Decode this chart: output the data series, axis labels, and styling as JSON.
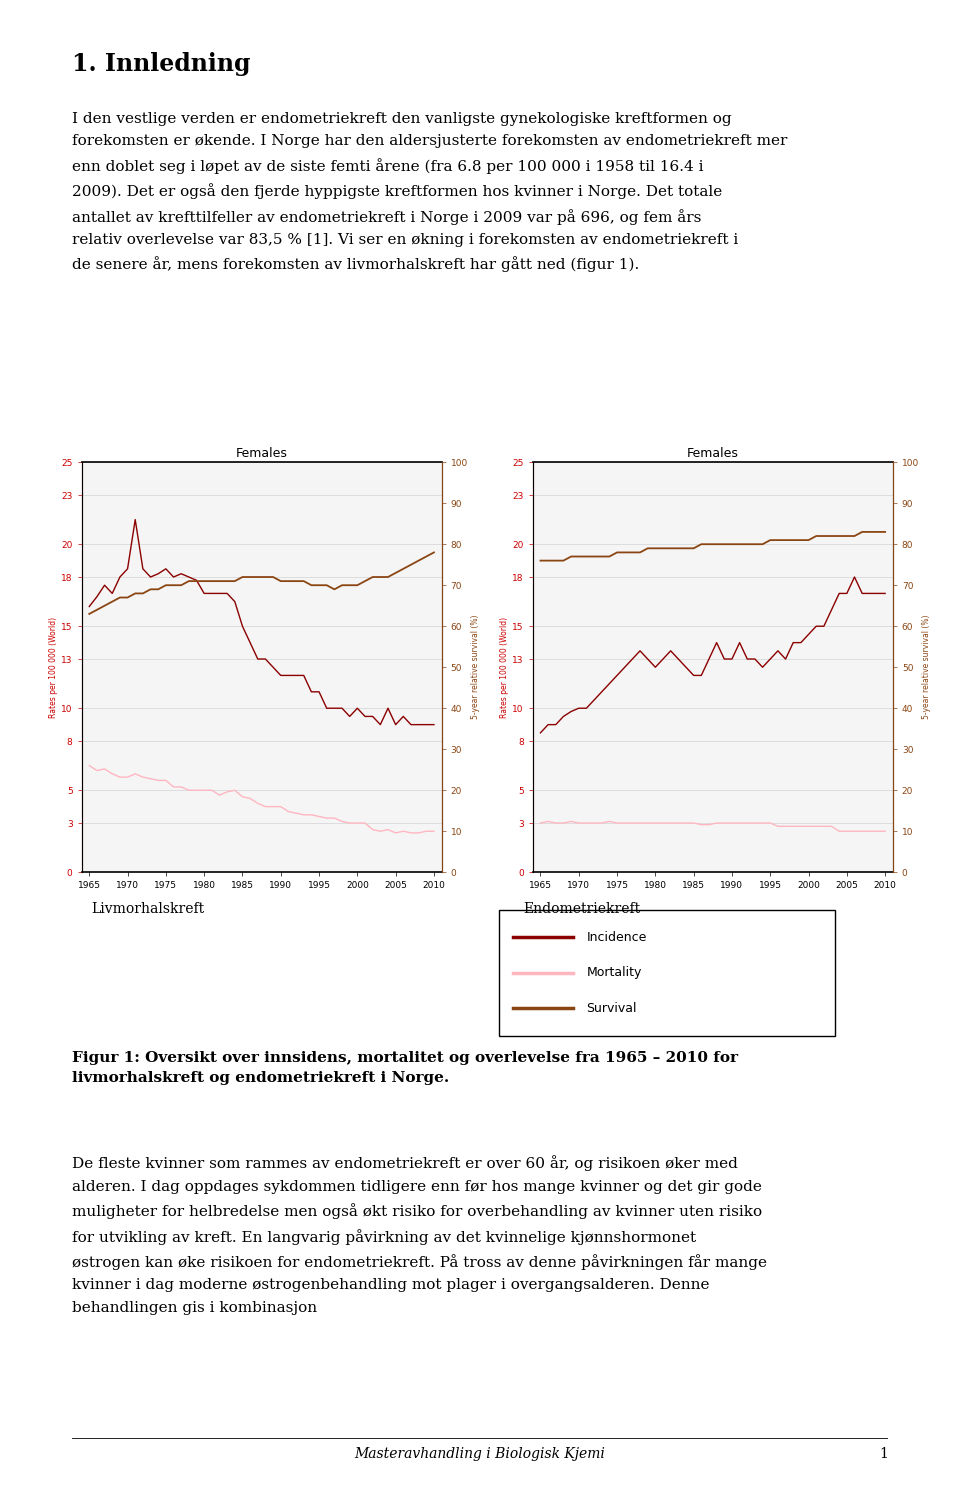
{
  "title": "1. Innledning",
  "paragraph1": "I den vestlige verden er endometriekreft den vanligste gynekologiske kreftformen og forekomsten er økende. I Norge har den aldersjusterte forekomsten av endometriekreft mer enn doblet seg i løpet av de siste femti årene (fra 6.8 per 100 000 i 1958 til 16.4 i 2009). Det er også den fjerde hyppigste kreftformen hos kvinner i Norge. Det totale antallet av krefttilfeller av endometriekreft i Norge i 2009 var på 696, og fem års relativ overlevelse var 83,5 % [1]. Vi ser en økning i forekomsten av endometriekreft i de senere år, mens forekomsten av livmorhalskreft har gått ned (figur 1).",
  "chart_label_left": "Livmorhalskreft",
  "chart_label_right": "Endometriekreft",
  "chart_title": "Females",
  "figur_caption_bold": "Figur 1: Oversikt over innsidens, mortalitet og overlevelse fra 1965 – 2010 for livmorhalskreft og endometriekreft i Norge.",
  "paragraph2": "De fleste kvinner som rammes av endometriekreft er over 60 år, og risikoen øker med alderen. I dag oppdages sykdommen tidligere enn før hos mange kvinner og det gir gode muligheter for helbredelse men også økt risiko for overbehandling av kvinner uten risiko for utvikling av kreft. En langvarig påvirkning av det kvinnelige kjønnshormonet østrogen kan øke risikoen for endometriekreft. På tross av denne påvirkningen får mange kvinner i dag moderne østrogenbehandling mot plager i overgangsalderen. Denne behandlingen gis i kombinasjon",
  "footer": "Masteravhandling i Biologisk Kjemi",
  "page_number": "1",
  "incidence_color": "#8B0000",
  "mortality_color": "#FFB6C1",
  "survival_color": "#8B4513",
  "background_color": "#ffffff",
  "years": [
    1965,
    1966,
    1967,
    1968,
    1969,
    1970,
    1971,
    1972,
    1973,
    1974,
    1975,
    1976,
    1977,
    1978,
    1979,
    1980,
    1981,
    1982,
    1983,
    1984,
    1985,
    1986,
    1987,
    1988,
    1989,
    1990,
    1991,
    1992,
    1993,
    1994,
    1995,
    1996,
    1997,
    1998,
    1999,
    2000,
    2001,
    2002,
    2003,
    2004,
    2005,
    2006,
    2007,
    2008,
    2009,
    2010
  ],
  "livmor_incidence": [
    16.2,
    16.8,
    17.5,
    17.0,
    18.0,
    18.5,
    21.5,
    18.5,
    18.0,
    18.2,
    18.5,
    18.0,
    18.2,
    18.0,
    17.8,
    17.0,
    17.0,
    17.0,
    17.0,
    16.5,
    15.0,
    14.0,
    13.0,
    13.0,
    12.5,
    12.0,
    12.0,
    12.0,
    12.0,
    11.0,
    11.0,
    10.0,
    10.0,
    10.0,
    9.5,
    10.0,
    9.5,
    9.5,
    9.0,
    10.0,
    9.0,
    9.5,
    9.0,
    9.0,
    9.0,
    9.0
  ],
  "livmor_mortality": [
    6.5,
    6.2,
    6.3,
    6.0,
    5.8,
    5.8,
    6.0,
    5.8,
    5.7,
    5.6,
    5.6,
    5.2,
    5.2,
    5.0,
    5.0,
    5.0,
    5.0,
    4.7,
    4.9,
    5.0,
    4.6,
    4.5,
    4.2,
    4.0,
    4.0,
    4.0,
    3.7,
    3.6,
    3.5,
    3.5,
    3.4,
    3.3,
    3.3,
    3.1,
    3.0,
    3.0,
    3.0,
    2.6,
    2.5,
    2.6,
    2.4,
    2.5,
    2.4,
    2.4,
    2.5,
    2.5
  ],
  "livmor_survival": [
    63,
    64,
    65,
    66,
    67,
    67,
    68,
    68,
    69,
    69,
    70,
    70,
    70,
    71,
    71,
    71,
    71,
    71,
    71,
    71,
    72,
    72,
    72,
    72,
    72,
    71,
    71,
    71,
    71,
    70,
    70,
    70,
    69,
    70,
    70,
    70,
    71,
    72,
    72,
    72,
    73,
    74,
    75,
    76,
    77,
    78
  ],
  "endo_incidence": [
    8.5,
    9.0,
    9.0,
    9.5,
    9.8,
    10.0,
    10.0,
    10.5,
    11.0,
    11.5,
    12.0,
    12.5,
    13.0,
    13.5,
    13.0,
    12.5,
    13.0,
    13.5,
    13.0,
    12.5,
    12.0,
    12.0,
    13.0,
    14.0,
    13.0,
    13.0,
    14.0,
    13.0,
    13.0,
    12.5,
    13.0,
    13.5,
    13.0,
    14.0,
    14.0,
    14.5,
    15.0,
    15.0,
    16.0,
    17.0,
    17.0,
    18.0,
    17.0,
    17.0,
    17.0,
    17.0
  ],
  "endo_mortality": [
    3.0,
    3.1,
    3.0,
    3.0,
    3.1,
    3.0,
    3.0,
    3.0,
    3.0,
    3.1,
    3.0,
    3.0,
    3.0,
    3.0,
    3.0,
    3.0,
    3.0,
    3.0,
    3.0,
    3.0,
    3.0,
    2.9,
    2.9,
    3.0,
    3.0,
    3.0,
    3.0,
    3.0,
    3.0,
    3.0,
    3.0,
    2.8,
    2.8,
    2.8,
    2.8,
    2.8,
    2.8,
    2.8,
    2.8,
    2.5,
    2.5,
    2.5,
    2.5,
    2.5,
    2.5,
    2.5
  ],
  "endo_survival": [
    76,
    76,
    76,
    76,
    77,
    77,
    77,
    77,
    77,
    77,
    78,
    78,
    78,
    78,
    79,
    79,
    79,
    79,
    79,
    79,
    79,
    80,
    80,
    80,
    80,
    80,
    80,
    80,
    80,
    80,
    81,
    81,
    81,
    81,
    81,
    81,
    82,
    82,
    82,
    82,
    82,
    82,
    83,
    83,
    83,
    83
  ],
  "left_yticks": [
    0,
    3,
    5,
    8,
    10,
    13,
    15,
    18,
    20,
    23,
    25
  ],
  "right_yticks": [
    0,
    10,
    20,
    30,
    40,
    50,
    60,
    70,
    80,
    90,
    100
  ],
  "xticks": [
    1965,
    1970,
    1975,
    1980,
    1985,
    1990,
    1995,
    2000,
    2005,
    2010
  ]
}
